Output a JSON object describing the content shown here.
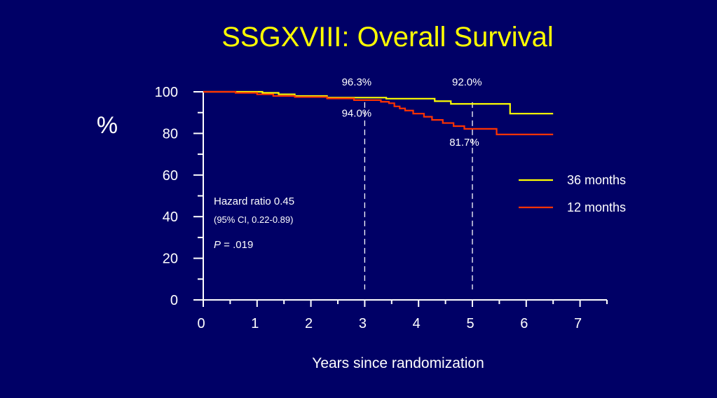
{
  "chart_data": {
    "type": "line",
    "title": "SSGXVIII: Overall Survival",
    "xlabel": "Years since randomization",
    "ylabel": "%",
    "xlim": [
      0,
      7.5
    ],
    "ylim": [
      0,
      100
    ],
    "x_ticks": [
      "0",
      "1",
      "2",
      "3",
      "4",
      "5",
      "6",
      "7"
    ],
    "y_ticks": [
      "0",
      "20",
      "40",
      "60",
      "80",
      "100"
    ],
    "reference_lines_x": [
      3,
      5
    ],
    "legend_position": "right",
    "series": [
      {
        "name": "36 months",
        "color": "#ffff00",
        "step": true,
        "points": [
          [
            0,
            100
          ],
          [
            1.1,
            99.5
          ],
          [
            1.4,
            98.8
          ],
          [
            1.7,
            98.0
          ],
          [
            2.3,
            97.2
          ],
          [
            3.4,
            96.7
          ],
          [
            4.3,
            95.5
          ],
          [
            4.6,
            94.2
          ],
          [
            5.7,
            89.5
          ],
          [
            6.5,
            89.5
          ]
        ]
      },
      {
        "name": "12 months",
        "color": "#ff3300",
        "step": true,
        "points": [
          [
            0,
            100
          ],
          [
            0.6,
            99.5
          ],
          [
            1.0,
            98.8
          ],
          [
            1.3,
            98.0
          ],
          [
            1.7,
            97.5
          ],
          [
            2.3,
            96.8
          ],
          [
            2.8,
            96.0
          ],
          [
            3.3,
            95.2
          ],
          [
            3.45,
            94.5
          ],
          [
            3.55,
            93.0
          ],
          [
            3.65,
            92.0
          ],
          [
            3.75,
            91.0
          ],
          [
            3.9,
            89.5
          ],
          [
            4.1,
            88.0
          ],
          [
            4.25,
            86.5
          ],
          [
            4.45,
            85.0
          ],
          [
            4.65,
            83.5
          ],
          [
            4.85,
            82.2
          ],
          [
            5.45,
            79.5
          ],
          [
            6.5,
            79.5
          ]
        ]
      }
    ],
    "annotations": [
      {
        "text": "96.3%",
        "x": 2.85,
        "y": 103
      },
      {
        "text": "92.0%",
        "x": 4.9,
        "y": 103
      },
      {
        "text": "94.0%",
        "x": 2.85,
        "y": 88
      },
      {
        "text": "81.7%",
        "x": 4.85,
        "y": 74
      }
    ],
    "stats": {
      "hazard_ratio": "Hazard ratio 0.45",
      "ci": "(95% CI, 0.22-0.89)",
      "p_label": "P",
      "p_value": " = .019"
    }
  }
}
